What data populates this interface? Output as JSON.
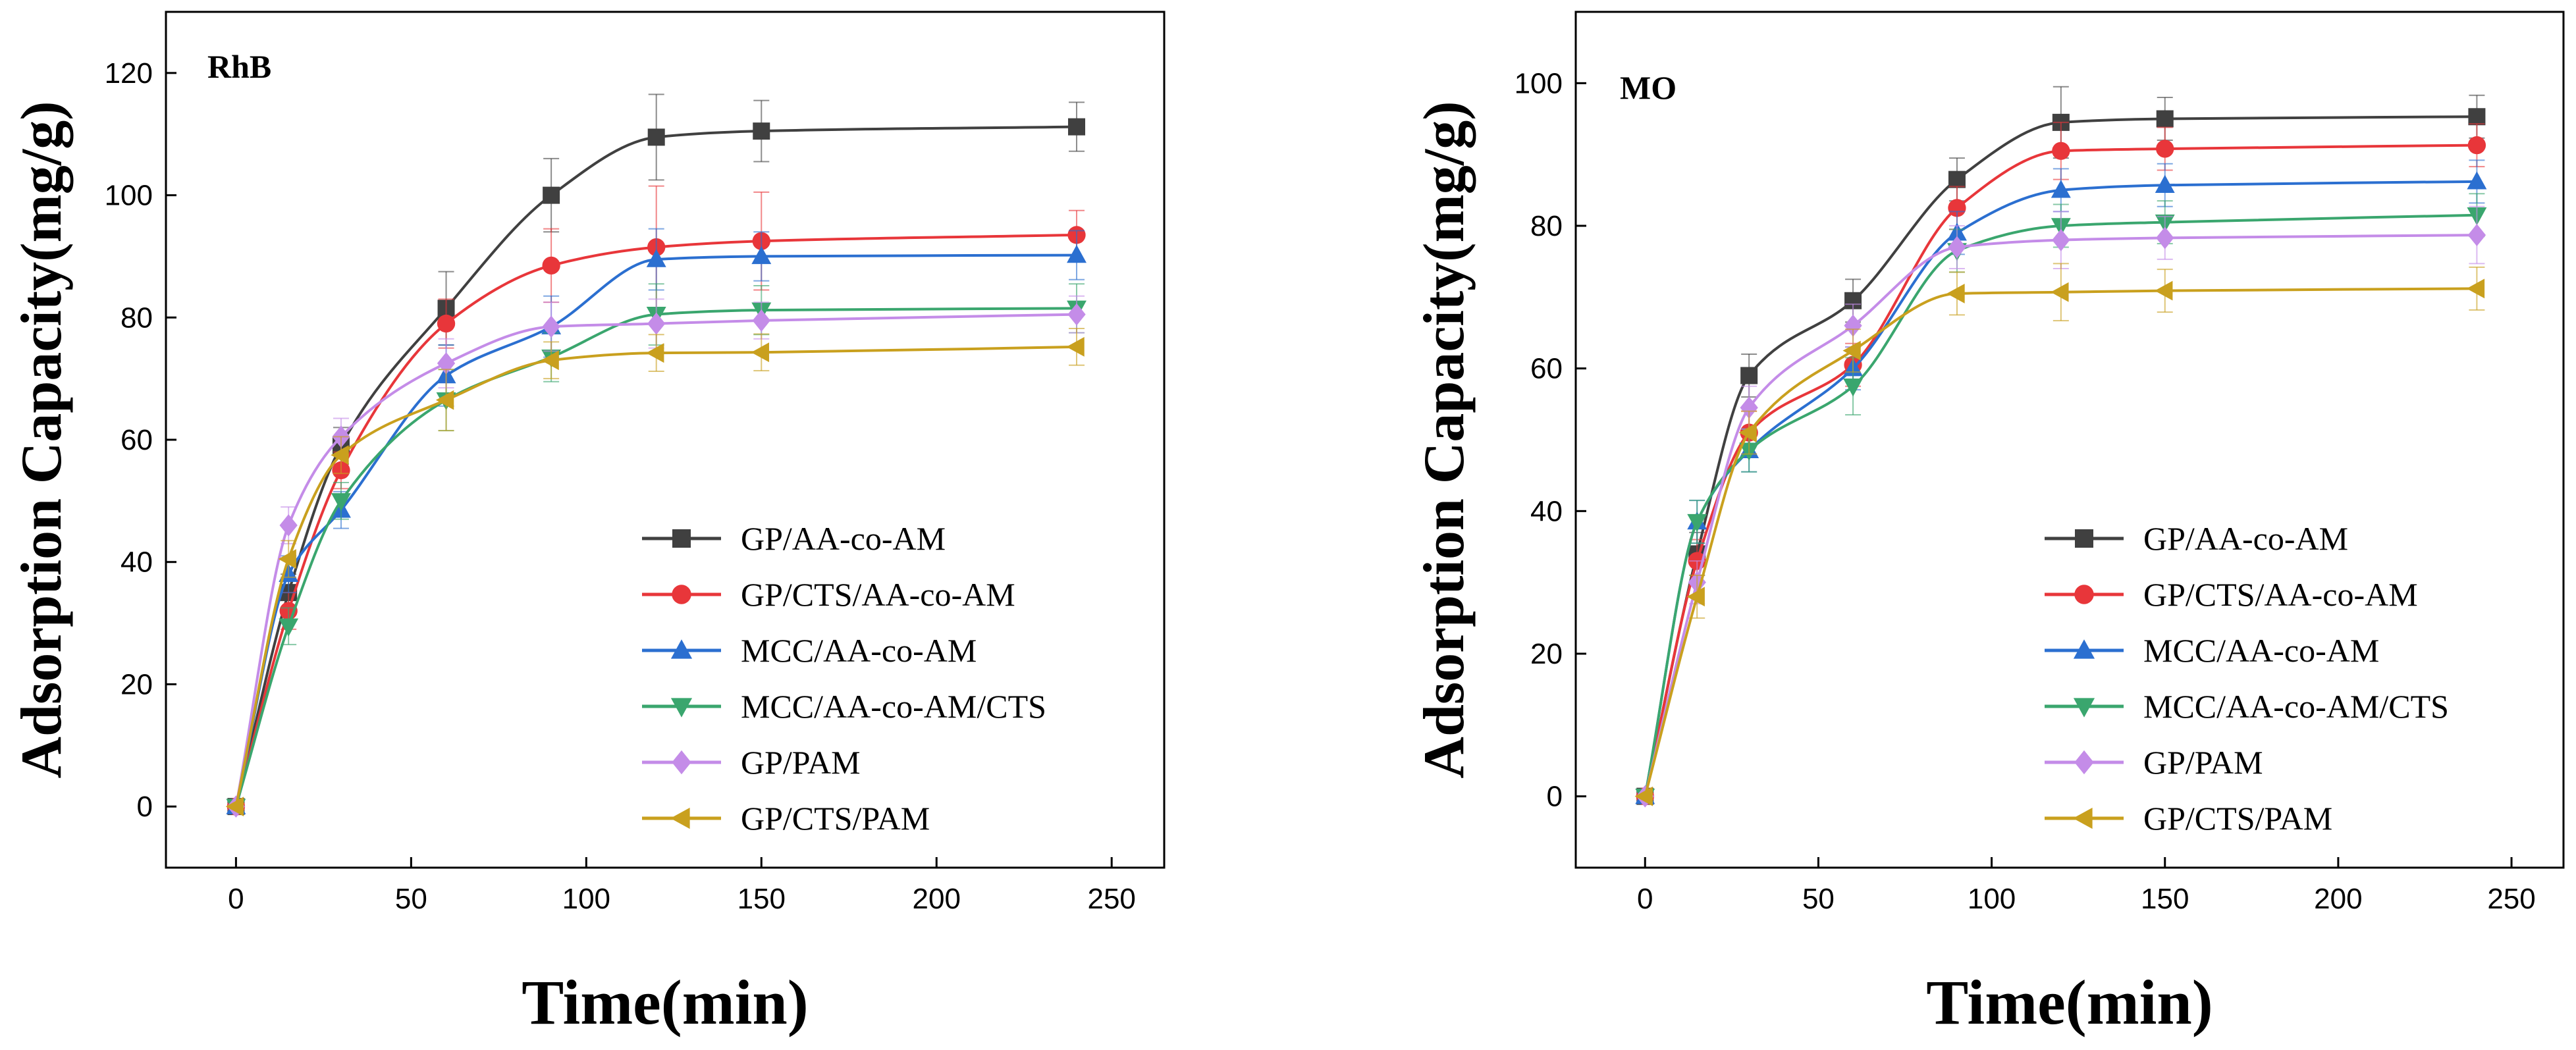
{
  "chart_data": [
    {
      "type": "line",
      "panel_label": "RhB",
      "xlabel": "Time(min)",
      "ylabel": "Adsorption Capacity(mg/g)",
      "xlim": [
        -20,
        265
      ],
      "ylim": [
        -10,
        130
      ],
      "xticks": [
        0,
        50,
        100,
        150,
        200,
        250
      ],
      "yticks": [
        0,
        20,
        40,
        60,
        80,
        100,
        120
      ],
      "legend_position": "lower-right",
      "x": [
        0,
        15,
        30,
        60,
        90,
        120,
        150,
        240
      ],
      "series": [
        {
          "name": "GP/AA-co-AM",
          "color": "#404040",
          "marker": "square",
          "values": [
            0,
            35,
            59,
            81.5,
            100,
            109.5,
            110.5,
            111.2
          ],
          "errors": [
            0,
            3,
            3,
            6,
            6,
            7,
            5,
            4
          ]
        },
        {
          "name": "GP/CTS/AA-co-AM",
          "color": "#e8363a",
          "marker": "circle",
          "values": [
            0,
            32,
            55,
            79,
            88.5,
            91.5,
            92.5,
            93.5
          ],
          "errors": [
            0,
            3,
            3,
            4,
            6,
            10,
            8,
            4
          ]
        },
        {
          "name": "MCC/AA-co-AM",
          "color": "#2b6fd0",
          "marker": "triangle-up",
          "values": [
            0,
            38,
            48.5,
            70.5,
            78.5,
            89.5,
            90,
            90.2
          ],
          "errors": [
            0,
            3,
            3,
            5,
            5,
            5,
            4,
            4
          ]
        },
        {
          "name": "MCC/AA-co-AM/CTS",
          "color": "#3aa66e",
          "marker": "triangle-down",
          "values": [
            0,
            29.5,
            50,
            66.5,
            73.5,
            80.5,
            81.2,
            81.5
          ],
          "errors": [
            0,
            3,
            3,
            5,
            4,
            5,
            4,
            4
          ]
        },
        {
          "name": "GP/PAM",
          "color": "#c48ce8",
          "marker": "diamond",
          "values": [
            0,
            46,
            60.5,
            72.5,
            78.5,
            79,
            79.5,
            80.5
          ],
          "errors": [
            0,
            3,
            3,
            4,
            4,
            4,
            3,
            3
          ]
        },
        {
          "name": "GP/CTS/PAM",
          "color": "#c9a01e",
          "marker": "triangle-left",
          "values": [
            0,
            40.5,
            57.5,
            66.5,
            73,
            74.2,
            74.3,
            75.2
          ],
          "errors": [
            0,
            3,
            3,
            5,
            3,
            3,
            3,
            3
          ]
        }
      ]
    },
    {
      "type": "line",
      "panel_label": "MO",
      "xlabel": "Time(min)",
      "ylabel": "Adsorption Capacity(mg/g)",
      "xlim": [
        -20,
        265
      ],
      "ylim": [
        -10,
        110
      ],
      "xticks": [
        0,
        50,
        100,
        150,
        200,
        250
      ],
      "yticks": [
        0,
        20,
        40,
        60,
        80,
        100
      ],
      "legend_position": "lower-right",
      "x": [
        0,
        15,
        30,
        60,
        90,
        120,
        150,
        240
      ],
      "series": [
        {
          "name": "GP/AA-co-AM",
          "color": "#404040",
          "marker": "square",
          "values": [
            0,
            34,
            59,
            69.5,
            86.5,
            94.5,
            95,
            95.3
          ],
          "errors": [
            0,
            3,
            3,
            3,
            3,
            5,
            3,
            3
          ]
        },
        {
          "name": "GP/CTS/AA-co-AM",
          "color": "#e8363a",
          "marker": "circle",
          "values": [
            0,
            33,
            51,
            60.5,
            82.5,
            90.5,
            90.8,
            91.3
          ],
          "errors": [
            0,
            3,
            3,
            3,
            3,
            4,
            3,
            3
          ]
        },
        {
          "name": "MCC/AA-co-AM",
          "color": "#2b6fd0",
          "marker": "triangle-up",
          "values": [
            0,
            38.5,
            48.5,
            60,
            79,
            85,
            85.7,
            86.2
          ],
          "errors": [
            0,
            3,
            3,
            3,
            3,
            3,
            3,
            3
          ]
        },
        {
          "name": "MCC/AA-co-AM/CTS",
          "color": "#3aa66e",
          "marker": "triangle-down",
          "values": [
            0,
            38.5,
            48.5,
            57.5,
            76.5,
            80,
            80.5,
            81.5
          ],
          "errors": [
            0,
            3,
            3,
            4,
            3,
            3,
            3,
            3
          ]
        },
        {
          "name": "GP/PAM",
          "color": "#c48ce8",
          "marker": "diamond",
          "values": [
            0,
            30,
            54.5,
            66,
            77,
            78,
            78.3,
            78.7
          ],
          "errors": [
            0,
            3,
            3,
            3,
            3,
            4,
            3,
            4
          ]
        },
        {
          "name": "GP/CTS/PAM",
          "color": "#c9a01e",
          "marker": "triangle-left",
          "values": [
            0,
            28,
            51,
            62.5,
            70.5,
            70.7,
            70.9,
            71.2
          ],
          "errors": [
            0,
            3,
            3,
            3,
            3,
            4,
            3,
            3
          ]
        }
      ]
    }
  ]
}
